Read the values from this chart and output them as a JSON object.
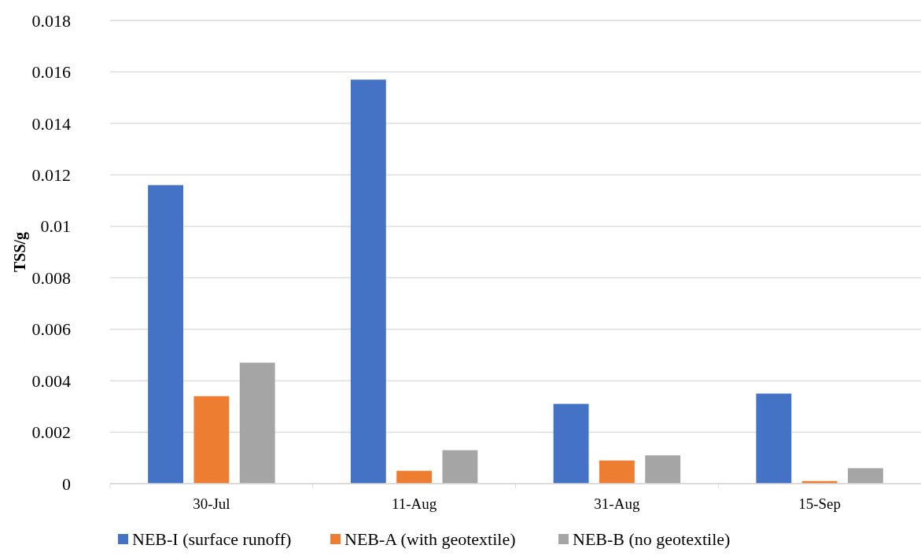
{
  "chart_data": {
    "type": "bar",
    "ylabel": "TSS/g",
    "categories": [
      "30-Jul",
      "11-Aug",
      "31-Aug",
      "15-Sep"
    ],
    "series": [
      {
        "name": "NEB-I (surface runoff)",
        "color": "#4472c4",
        "values": [
          0.0116,
          0.0157,
          0.0031,
          0.0035
        ]
      },
      {
        "name": "NEB-A (with geotextile)",
        "color": "#ed7d31",
        "values": [
          0.0034,
          0.0005,
          0.0009,
          0.0001
        ]
      },
      {
        "name": "NEB-B (no geotextile)",
        "color": "#a5a5a5",
        "values": [
          0.0047,
          0.0013,
          0.0011,
          0.0006
        ]
      }
    ],
    "ylim": [
      0,
      0.018
    ],
    "yticks": [
      0,
      0.002,
      0.004,
      0.006,
      0.008,
      0.01,
      0.012,
      0.014,
      0.016,
      0.018
    ],
    "grid": "y",
    "legend": "bottom"
  }
}
